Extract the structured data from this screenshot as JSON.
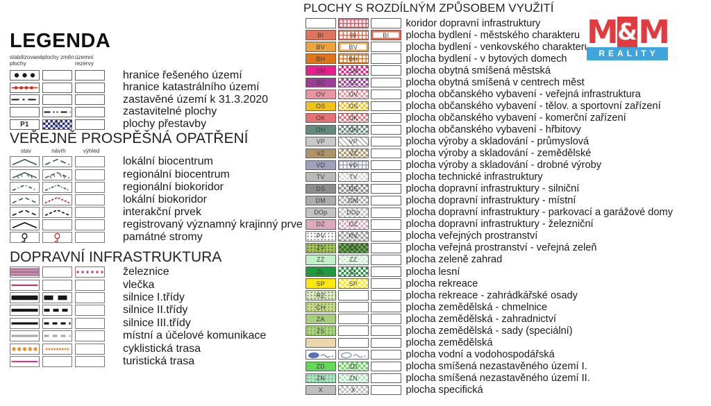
{
  "logo": {
    "m_left": "M",
    "amp": "&",
    "m_right": "M",
    "reality": "REALITY",
    "red": "#E13B3F",
    "blue": "#3FA5DB"
  },
  "legenda": {
    "title": "LEGENDA",
    "col_headers": [
      "stabilizované plochy",
      "plochy změn",
      "územní rezervy"
    ],
    "rows": [
      {
        "label": "hranice řešeného území",
        "cells": [
          {
            "t": "dots3",
            "c": "#161616"
          },
          {},
          {}
        ]
      },
      {
        "label": "hranice katastrálního území",
        "cells": [
          {
            "t": "linedots",
            "c": "#CF2A20"
          },
          {},
          {}
        ]
      },
      {
        "label": "zastavěné území k 31.3.2020",
        "cells": [
          {
            "t": "dash",
            "c": "#161616",
            "w": 2,
            "d": "11 5 3 5"
          },
          {},
          {}
        ]
      },
      {
        "label": "zastavitelné plochy",
        "cells": [
          {},
          {
            "t": "dash",
            "c": "#161616",
            "w": 2,
            "d": "9 4 2 3 2 4"
          },
          {}
        ]
      },
      {
        "label": "plochy přestavby",
        "cells": [
          {
            "t": "label",
            "v": "P1"
          },
          {
            "t": "checker",
            "c": "#2B2E8C",
            "v": "P1"
          },
          {}
        ]
      }
    ]
  },
  "vpo": {
    "title": "VEŘEJNĚ PROSPĚŠNÁ OPATŘENÍ",
    "col_headers": [
      "stav",
      "návrh",
      "výhled"
    ],
    "rows": [
      {
        "label": "lokální biocentrum",
        "cells": [
          {
            "t": "chev",
            "c": "#44604F"
          },
          {
            "t": "chev",
            "c": "#44604F",
            "d": "8 4"
          },
          {}
        ]
      },
      {
        "label": "regionální biocentrum",
        "cells": [
          {
            "t": "chevtick",
            "c": "#44604F"
          },
          {
            "t": "chevtick",
            "c": "#44604F",
            "d": "6 3"
          },
          {}
        ]
      },
      {
        "label": "regionální biokoridor",
        "cells": [
          {
            "t": "chev",
            "c": "#44604F",
            "d": "5 3 1.5 3"
          },
          {
            "t": "chev",
            "c": "#44604F",
            "d": "4 2 1.5 2"
          },
          {}
        ]
      },
      {
        "label": "lokální biokoridor",
        "cells": [
          {
            "t": "chev",
            "c": "#44604F",
            "d": "6 4"
          },
          {
            "t": "chev",
            "c": "#C8281E",
            "d": "3 2"
          },
          {}
        ]
      },
      {
        "label": "interakční prvek",
        "cells": [
          {
            "t": "chev",
            "c": "#161616",
            "d": "6 4"
          },
          {
            "t": "chev",
            "c": "#161616",
            "d": "4 2.5"
          },
          {}
        ]
      },
      {
        "label": "registrovaný významný krajinný prve",
        "cells": [
          {
            "t": "chev",
            "c": "#161616"
          },
          {},
          {}
        ]
      },
      {
        "label": "památné stromy",
        "cells": [
          {
            "t": "tree",
            "c": "#161616"
          },
          {
            "t": "tree",
            "c": "#C8281E"
          },
          {}
        ]
      }
    ]
  },
  "doprava": {
    "title": "DOPRAVNÍ INFRASTRUKTURA",
    "rows": [
      {
        "label": "železnice",
        "cells": [
          {
            "t": "rail",
            "c": "#C78FAB",
            "c2": "#9A5B84"
          },
          {},
          {
            "t": "dash",
            "c": "#AD4478",
            "w": 3,
            "d": "3 4"
          }
        ]
      },
      {
        "label": "vlečka",
        "cells": [
          {
            "t": "dash",
            "c": "#A63E6F",
            "w": 2
          },
          {},
          {}
        ]
      },
      {
        "label": "silnice I.třídy",
        "cells": [
          {
            "t": "dash",
            "c": "#161616",
            "w": 6
          },
          {
            "t": "dash",
            "c": "#161616",
            "w": 6,
            "d": "13 7"
          },
          {}
        ]
      },
      {
        "label": "silnice II.třídy",
        "cells": [
          {
            "t": "dash",
            "c": "#161616",
            "w": 4
          },
          {
            "t": "dash",
            "c": "#161616",
            "w": 4,
            "d": "8 5"
          },
          {}
        ]
      },
      {
        "label": "silnice III.třídy",
        "cells": [
          {
            "t": "dash",
            "c": "#161616",
            "w": 3
          },
          {
            "t": "dash",
            "c": "#161616",
            "w": 3,
            "d": "7 5"
          },
          {}
        ]
      },
      {
        "label": "místní a účelové komunikace",
        "cells": [
          {
            "t": "dash",
            "c": "#ABABAB",
            "w": 3
          },
          {
            "t": "dash",
            "c": "#ABABAB",
            "w": 3,
            "d": "7 5"
          },
          {}
        ]
      },
      {
        "label": "cyklistická trasa",
        "cells": [
          {
            "t": "dotrow",
            "c": "#E89438",
            "r": 2.7,
            "n": 5
          },
          {
            "t": "dotrow",
            "c": "#E89438",
            "r": 1.5,
            "n": 9
          },
          {}
        ]
      },
      {
        "label": "turistická trasa",
        "cells": [
          {
            "t": "dash",
            "c": "#C2428C",
            "w": 2
          },
          {},
          {}
        ]
      }
    ]
  },
  "plochy": {
    "title": "PLOCHY S ROZDÍLNÝM ZPŮSOBEM VYUŽITÍ",
    "rows": [
      {
        "code": "",
        "label": "koridor dopravní infrastruktury",
        "cells": [
          {},
          {
            "t": "grid",
            "c": "#CF6070",
            "bg": "#F7E9ED"
          },
          {}
        ]
      },
      {
        "code": "BI",
        "label": "plocha bydlení - městského charakteru",
        "cells": [
          {
            "t": "solid",
            "c": "#E0735C",
            "v": "BI"
          },
          {
            "t": "grid",
            "c": "#DD6C50",
            "v": "BI"
          },
          {
            "t": "inborder",
            "c": "#DD6C50",
            "v": "BI"
          }
        ]
      },
      {
        "code": "BV",
        "label": "plocha bydlení - venkovského charakteru",
        "cells": [
          {
            "t": "solid",
            "c": "#F0A23B",
            "v": "BV"
          },
          {
            "t": "inborder",
            "c": "#F0A23B",
            "v": "BV"
          },
          {}
        ]
      },
      {
        "code": "BH",
        "label": "plocha bydlení - v bytových domech",
        "cells": [
          {
            "t": "solid",
            "c": "#DE751B",
            "v": "BH"
          },
          {
            "t": "grid",
            "c": "#DE751B",
            "v": "BH"
          },
          {}
        ]
      },
      {
        "code": "SM",
        "label": "plocha obytná smíšená městská",
        "cells": [
          {
            "t": "solid",
            "c": "#E91E8F",
            "v": "SM"
          },
          {
            "t": "checker",
            "c": "#E91E8F",
            "v": "SM"
          },
          {}
        ]
      },
      {
        "code": "SC",
        "label": "plocha obytná smíšená v centrech měst",
        "cells": [
          {
            "t": "solid",
            "c": "#9A3E9A",
            "v": "SC"
          },
          {
            "t": "checker",
            "c": "#9A3E9A",
            "v": "SC"
          },
          {}
        ]
      },
      {
        "code": "OV",
        "label": "plocha občanského vybavení - veřejná infrastruktura",
        "cells": [
          {
            "t": "solid",
            "c": "#EA93A1",
            "v": "OV"
          },
          {
            "t": "checker",
            "c": "#EA93A1",
            "v": "OV"
          },
          {}
        ]
      },
      {
        "code": "OS",
        "label": "plocha občanského vybavení - tělov. a sportovní zařízení",
        "cells": [
          {
            "t": "solid",
            "c": "#F1C319",
            "v": "OS"
          },
          {
            "t": "checker",
            "c": "#F1C319",
            "v": "OS"
          },
          {}
        ]
      },
      {
        "code": "OK",
        "label": "plocha občanského vybavení - komerční zařízení",
        "cells": [
          {
            "t": "solid",
            "c": "#E47173",
            "v": "OK"
          },
          {
            "t": "checker",
            "c": "#E47173",
            "v": "OK"
          },
          {}
        ]
      },
      {
        "code": "OH",
        "label": "plocha občanského vybavení - hřbitovy",
        "cells": [
          {
            "t": "solid",
            "c": "#64897D",
            "v": "OH"
          },
          {
            "t": "checker",
            "c": "#64897D",
            "v": "OH"
          },
          {}
        ]
      },
      {
        "code": "VP",
        "label": "plocha výroby a skladování - průmyslová",
        "cells": [
          {
            "t": "solid",
            "c": "#C9C9C9",
            "v": "VP"
          },
          {
            "t": "hatch",
            "c": "#9C9C9C",
            "v": "VP"
          },
          {}
        ]
      },
      {
        "code": "VZ",
        "label": "plocha výroby a skladování - zemědělské",
        "cells": [
          {
            "t": "solid",
            "c": "#AE9468",
            "v": "VZ"
          },
          {
            "t": "checker",
            "c": "#AE9468",
            "v": "VZ"
          },
          {}
        ]
      },
      {
        "code": "VD",
        "label": "plocha výroby a skladování - drobné výroby",
        "cells": [
          {
            "t": "solid",
            "c": "#9FA0BC",
            "v": "VD"
          },
          {
            "t": "grid",
            "c": "#9FA0BC",
            "v": "VD"
          },
          {}
        ]
      },
      {
        "code": "TV",
        "label": "plocha technické infrastruktury",
        "cells": [
          {
            "t": "solid",
            "c": "#BABABA",
            "v": "TV"
          },
          {
            "t": "checker",
            "c": "#D8D8D8",
            "v": "TV"
          },
          {}
        ]
      },
      {
        "code": "DS",
        "label": "plocha dopravní infrastruktury - silniční",
        "cells": [
          {
            "t": "solid",
            "c": "#8D8D8D",
            "v": "DS"
          },
          {
            "t": "checker",
            "c": "#8D8D8D",
            "v": "DS"
          },
          {}
        ]
      },
      {
        "code": "DM",
        "label": "plocha dopravní infrastruktury - místní",
        "cells": [
          {
            "t": "solid",
            "c": "#ADADAD",
            "v": "DM"
          },
          {
            "t": "checker",
            "c": "#ADADAD",
            "v": "DM"
          },
          {}
        ]
      },
      {
        "code": "DOp",
        "label": "plocha dopravní infrastruktury - parkovací a garážové domy",
        "cells": [
          {
            "t": "solid",
            "c": "#C3C3C3",
            "v": "DOp"
          },
          {
            "t": "checker",
            "c": "#C3C3C3",
            "v": "DOp"
          },
          {}
        ]
      },
      {
        "code": "DZ",
        "label": "plocha dopravní infrastruktury - železniční",
        "cells": [
          {
            "t": "solid",
            "c": "#DCA9BE",
            "v": "DZ"
          },
          {
            "t": "checker",
            "c": "#DCA9BE",
            "v": "DZ"
          },
          {}
        ]
      },
      {
        "code": "PV",
        "label": "plocha veřejných prostranství",
        "cells": [
          {
            "t": "dots",
            "c": "#8F8F8F",
            "v": "PV"
          },
          {
            "t": "checker",
            "c": "#9E9E9E",
            "v": "PV"
          },
          {}
        ]
      },
      {
        "code": "ZV",
        "label": "plocha veřejná prostranství - veřejná zeleň",
        "cells": [
          {
            "t": "dots",
            "c": "#52771F",
            "bg": "#A6C25C",
            "v": "ZV"
          },
          {
            "t": "checker",
            "c": "#2F6B2F",
            "bg": "#79A84F",
            "v": "ZV"
          },
          {}
        ]
      },
      {
        "code": "ZZ",
        "label": "plocha zeleně zahrad",
        "cells": [
          {
            "t": "solid",
            "c": "#C0F0C8",
            "v": "ZZ"
          },
          {
            "t": "checker",
            "c": "#C0F0C8",
            "v": "ZZ"
          },
          {}
        ]
      },
      {
        "code": "ZL",
        "label": "plocha lesní",
        "cells": [
          {
            "t": "solid",
            "c": "#21993F",
            "v": "ZL"
          },
          {
            "t": "checker",
            "c": "#21993F",
            "v": "ZL"
          },
          {}
        ]
      },
      {
        "code": "SP",
        "label": "plocha rekreace",
        "cells": [
          {
            "t": "solid",
            "c": "#FAE90B",
            "v": "SP"
          },
          {
            "t": "checker",
            "c": "#FAE90B",
            "v": "SP"
          },
          {}
        ]
      },
      {
        "code": "RZ",
        "label": "plocha rekreace - zahrádkářské osady",
        "cells": [
          {
            "t": "dots",
            "c": "#7FA050",
            "bg": "#DDE9C8",
            "v": "RZ"
          },
          {},
          {}
        ]
      },
      {
        "code": "CH",
        "label": "plocha zemědělská - chmelnice",
        "cells": [
          {
            "t": "dots",
            "c": "#86A04B",
            "bg": "#C7DA8E",
            "v": "CH"
          },
          {},
          {}
        ]
      },
      {
        "code": "ZA",
        "label": "plocha zemědělská - zahradnictví",
        "cells": [
          {
            "t": "solid",
            "c": "#A5CE7E",
            "v": "ZA"
          },
          {},
          {}
        ]
      },
      {
        "code": "ZS",
        "label": "plocha zemědělská - sady (speciální)",
        "cells": [
          {
            "t": "dots",
            "c": "#6E9C40",
            "bg": "#ABD584",
            "v": "ZS"
          },
          {},
          {}
        ]
      },
      {
        "code": "",
        "label": "plocha zemědělská",
        "cells": [
          {
            "t": "solid",
            "c": "#EBD7AC"
          },
          {},
          {}
        ]
      },
      {
        "code": "",
        "label": "plocha vodní a vodohospodářská",
        "cells": [
          {
            "t": "blob",
            "c": "#5B6FB5",
            "fill": true
          },
          {
            "t": "blob",
            "c": "#7583C4",
            "fill": false
          },
          {}
        ]
      },
      {
        "code": "ZD",
        "label": "plocha smíšená nezastavěného území I.",
        "cells": [
          {
            "t": "solid",
            "c": "#63D957",
            "v": "ZD"
          },
          {
            "t": "checker",
            "c": "#63D957",
            "v": "ZD"
          },
          {}
        ]
      },
      {
        "code": "ZN",
        "label": "plocha smíšená nezastavěného území II.",
        "cells": [
          {
            "t": "dots",
            "c": "#6FB08C",
            "bg": "#ACE3BC",
            "v": "ZN"
          },
          {
            "t": "checker",
            "c": "#ACE3BC",
            "v": "ZN"
          },
          {}
        ]
      },
      {
        "code": "X",
        "label": "plocha specifická",
        "cells": [
          {
            "t": "solid",
            "c": "#BEBEBE",
            "v": "X"
          },
          {
            "t": "checker",
            "c": "#BEBEBE",
            "v": "X"
          },
          {}
        ]
      }
    ]
  }
}
